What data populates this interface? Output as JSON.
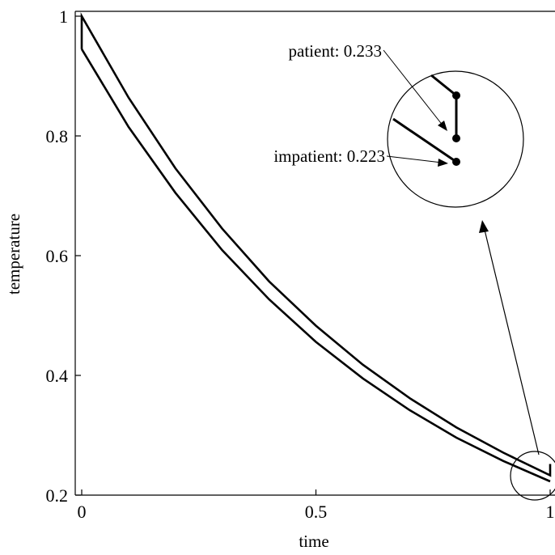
{
  "chart_data": {
    "type": "line",
    "title": "",
    "xlabel": "time",
    "ylabel": "temperature",
    "xlim": [
      0,
      1
    ],
    "ylim": [
      0.2,
      1.0
    ],
    "x_ticks": [
      {
        "value": 0,
        "label": "0"
      },
      {
        "value": 0.5,
        "label": "0.5"
      },
      {
        "value": 1,
        "label": "1"
      }
    ],
    "y_ticks": [
      {
        "value": 0.2,
        "label": "0.2"
      },
      {
        "value": 0.4,
        "label": "0.4"
      },
      {
        "value": 0.6,
        "label": "0.6"
      },
      {
        "value": 0.8,
        "label": "0.8"
      },
      {
        "value": 1.0,
        "label": "1"
      }
    ],
    "series": [
      {
        "x": [
          0,
          0,
          0.1,
          0.2,
          0.3,
          0.4,
          0.5,
          0.6,
          0.7,
          0.8,
          0.9,
          1.0,
          1.0
        ],
        "values": [
          0.945,
          1.0,
          0.864,
          0.746,
          0.645,
          0.557,
          0.483,
          0.418,
          0.362,
          0.313,
          0.271,
          0.233,
          0.252
        ]
      },
      {
        "x": [
          0,
          0.1,
          0.2,
          0.3,
          0.4,
          0.5,
          0.6,
          0.7,
          0.8,
          0.9,
          1.0
        ],
        "values": [
          0.945,
          0.815,
          0.705,
          0.609,
          0.527,
          0.456,
          0.395,
          0.342,
          0.296,
          0.257,
          0.223
        ]
      }
    ],
    "annotations": [
      {
        "text": "patient: 0.233",
        "x": 1.0,
        "y": 0.233
      },
      {
        "text": "impatient: 0.223",
        "x": 1.0,
        "y": 0.223
      }
    ],
    "grid": false,
    "legend": "none"
  }
}
